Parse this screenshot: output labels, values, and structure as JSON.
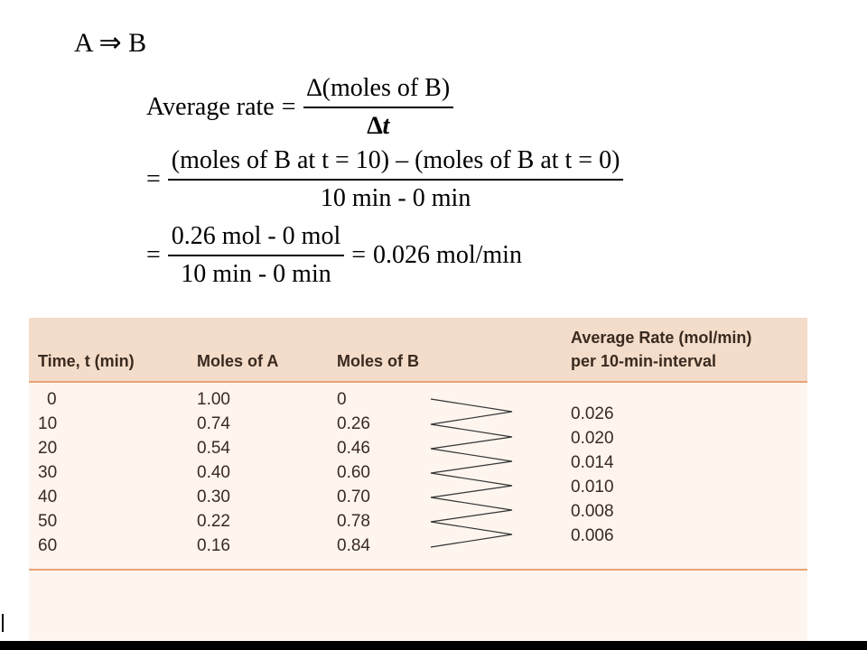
{
  "reaction": "A ⇒ B",
  "equations": {
    "line1_lhs": "Average rate",
    "line1_op": "=",
    "line1_num": "∆(moles of B)",
    "line1_den": "∆t",
    "line2_op": "=",
    "line2_num": "(moles of B at t = 10) – (moles of B at t = 0)",
    "line2_den": "10 min - 0 min",
    "line3_op": "=",
    "line3_num": "0.26 mol - 0 mol",
    "line3_den": "10 min - 0 min",
    "line3_result_op": "=",
    "line3_result": "0.026 mol/min"
  },
  "table": {
    "headers": {
      "time": "Time, t (min)",
      "moles_a": "Moles of A",
      "moles_b": "Moles of B",
      "rate_line1": "Average Rate (mol/min)",
      "rate_line2": "per 10-min-interval"
    },
    "rows": [
      {
        "t": "0",
        "a": "1.00",
        "b": "0"
      },
      {
        "t": "10",
        "a": "0.74",
        "b": "0.26"
      },
      {
        "t": "20",
        "a": "0.54",
        "b": "0.46"
      },
      {
        "t": "30",
        "a": "0.40",
        "b": "0.60"
      },
      {
        "t": "40",
        "a": "0.30",
        "b": "0.70"
      },
      {
        "t": "50",
        "a": "0.22",
        "b": "0.78"
      },
      {
        "t": "60",
        "a": "0.16",
        "b": "0.84"
      }
    ],
    "rates": [
      "0.026",
      "0.020",
      "0.014",
      "0.010",
      "0.008",
      "0.006"
    ]
  }
}
